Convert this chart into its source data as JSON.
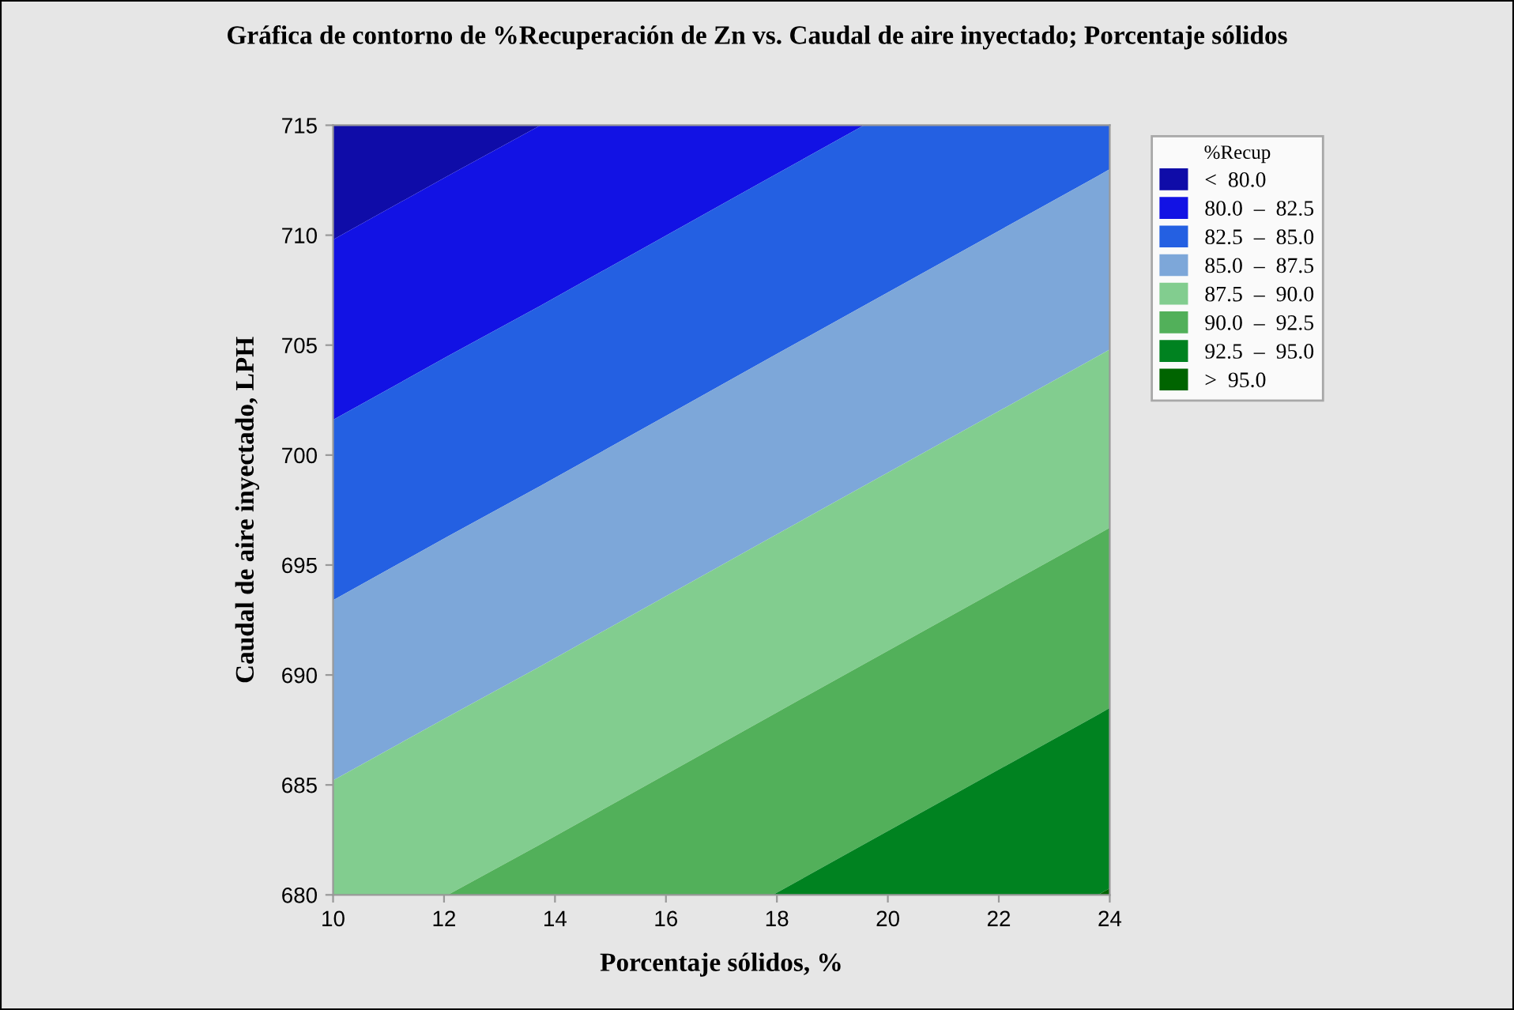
{
  "chart_data": {
    "type": "area",
    "title": "Gráfica de contorno de %Recuperación de Zn vs. Caudal de aire inyectado; Porcentaje sólidos",
    "xlabel": "Porcentaje sólidos, %",
    "ylabel": "Caudal de aire inyectado, LPH",
    "legend_title": "%Recup",
    "x": [
      10,
      12.07,
      13.74,
      17.93,
      19.57,
      23.79,
      24
    ],
    "series": [
      {
        "name": "<  80.0",
        "color": "#0f0ca8",
        "values": [
          715,
          715,
          715,
          715,
          715,
          715,
          715
        ]
      },
      {
        "name": "80.0  –  82.5",
        "color": "#1212e4",
        "values": [
          709.8,
          712.7,
          715,
          715,
          715,
          715,
          715
        ]
      },
      {
        "name": "82.5  –  85.0",
        "color": "#2460e2",
        "values": [
          701.6,
          704.5,
          706.8,
          712.7,
          715,
          715,
          715
        ]
      },
      {
        "name": "85.0  –  87.5",
        "color": "#7da7d9",
        "values": [
          693.4,
          696.3,
          698.6,
          704.5,
          706.8,
          712.7,
          713
        ]
      },
      {
        "name": "87.5  –  90.0",
        "color": "#82cd8f",
        "values": [
          685.2,
          688.1,
          690.4,
          696.3,
          698.6,
          704.5,
          704.8
        ]
      },
      {
        "name": "90.0  –  92.5",
        "color": "#52b05a",
        "values": [
          680,
          680,
          682.3,
          688.2,
          690.5,
          696.4,
          696.7
        ]
      },
      {
        "name": "92.5  –  95.0",
        "color": "#008220",
        "values": [
          680,
          680,
          680,
          680,
          682.3,
          688.2,
          688.5
        ]
      },
      {
        "name": ">  95.0",
        "color": "#006400",
        "values": [
          680,
          680,
          680,
          680,
          680,
          680,
          680.3
        ]
      }
    ],
    "xlim": [
      10,
      24
    ],
    "ylim": [
      680,
      715
    ],
    "xticks": [
      10,
      12,
      14,
      16,
      18,
      20,
      22,
      24
    ],
    "yticks": [
      680,
      685,
      690,
      695,
      700,
      705,
      710,
      715
    ],
    "grid": false,
    "legend": "right"
  }
}
